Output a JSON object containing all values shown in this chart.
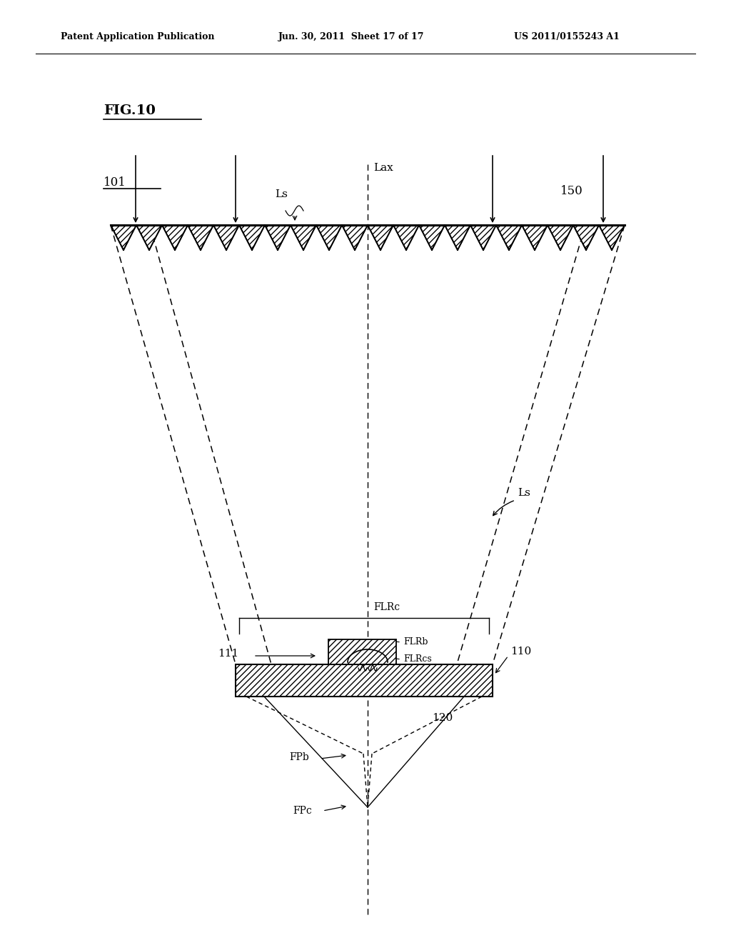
{
  "background_color": "#ffffff",
  "header_left": "Patent Application Publication",
  "header_mid": "Jun. 30, 2011  Sheet 17 of 17",
  "header_right": "US 2011/0155243 A1",
  "fig_label": "FIG.10",
  "label_101": "101",
  "label_150": "150",
  "label_110": "110",
  "label_111": "111",
  "label_120": "120",
  "label_Lax": "Lax",
  "label_Ls1": "Ls",
  "label_Ls2": "Ls",
  "label_FLRc": "FLRc",
  "label_FLRb": "FLRb",
  "label_FLRcs": "FLRcs",
  "label_FPb": "FPb",
  "label_FPc": "FPc",
  "line_color": "#000000",
  "hatch_color": "#000000"
}
